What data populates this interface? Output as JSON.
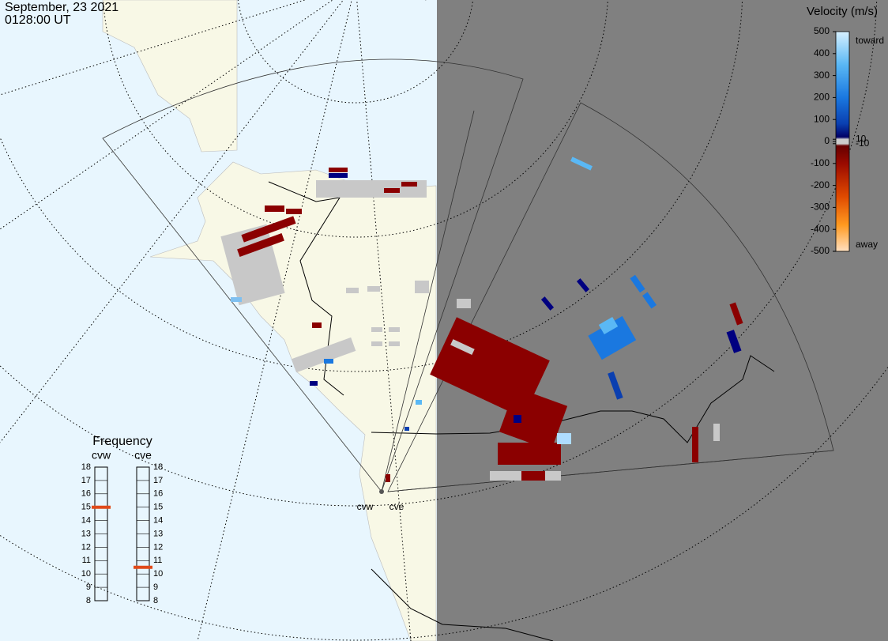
{
  "header": {
    "date": "September, 23 2021",
    "time": "0128:00 UT"
  },
  "colorbar": {
    "title": "Velocity (m/s)",
    "ticks": [
      500,
      400,
      300,
      200,
      100,
      10,
      0,
      -10,
      -100,
      -200,
      -300,
      -400,
      -500
    ],
    "top_label": "toward",
    "bottom_label": "away"
  },
  "frequency": {
    "title": "Frequency",
    "ticks": [
      8,
      9,
      10,
      11,
      12,
      13,
      14,
      15,
      16,
      17,
      18
    ],
    "range": [
      8,
      18
    ],
    "radars": [
      {
        "name": "cvw",
        "value": 15
      },
      {
        "name": "cve",
        "value": 10.5
      }
    ]
  },
  "radar_labels": [
    "cvw",
    "cve"
  ]
}
